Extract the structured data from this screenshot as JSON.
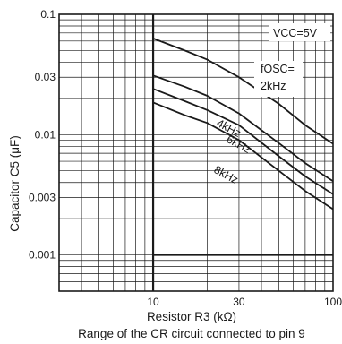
{
  "chart_data": {
    "type": "line",
    "x_scale": "log",
    "y_scale": "log",
    "xlim": [
      3,
      100
    ],
    "ylim": [
      0.0005,
      0.1
    ],
    "x_ticks": [
      10,
      30,
      100
    ],
    "x_tick_labels": [
      "10",
      "30",
      "100"
    ],
    "y_ticks": [
      0.001,
      0.003,
      0.01,
      0.03,
      0.1
    ],
    "y_tick_labels": [
      "0.001",
      "0.003",
      "0.01",
      "0.03",
      "0.1"
    ],
    "grid": true,
    "xlabel": "Resistor R3 (kΩ)",
    "ylabel": "Capacitor C5 (μF)",
    "caption": "Range of the CR circuit connected to pin 9",
    "condition_label": "VCC=5V",
    "valid_range": {
      "x_min": 10,
      "x_max": 100,
      "y_min": 0.001,
      "y_max": 0.1
    },
    "series": [
      {
        "name": "2kHz",
        "label_text": "fOSC= 2kHz",
        "points": [
          [
            10,
            0.063
          ],
          [
            15,
            0.05
          ],
          [
            20,
            0.042
          ],
          [
            30,
            0.03
          ],
          [
            50,
            0.018
          ],
          [
            70,
            0.012
          ],
          [
            100,
            0.0084
          ]
        ]
      },
      {
        "name": "4kHz",
        "label_text": "4kHz",
        "points": [
          [
            10,
            0.031
          ],
          [
            15,
            0.025
          ],
          [
            20,
            0.021
          ],
          [
            30,
            0.015
          ],
          [
            50,
            0.0085
          ],
          [
            70,
            0.0058
          ],
          [
            100,
            0.0041
          ]
        ]
      },
      {
        "name": "6kHz",
        "label_text": "6kHz",
        "points": [
          [
            10,
            0.024
          ],
          [
            15,
            0.019
          ],
          [
            20,
            0.016
          ],
          [
            30,
            0.012
          ],
          [
            50,
            0.0066
          ],
          [
            70,
            0.0045
          ],
          [
            100,
            0.0032
          ]
        ]
      },
      {
        "name": "8kHz",
        "label_text": "8kHz",
        "points": [
          [
            10,
            0.0185
          ],
          [
            15,
            0.0145
          ],
          [
            20,
            0.0125
          ],
          [
            30,
            0.009
          ],
          [
            50,
            0.005
          ],
          [
            70,
            0.0034
          ],
          [
            100,
            0.0024
          ]
        ]
      }
    ]
  }
}
